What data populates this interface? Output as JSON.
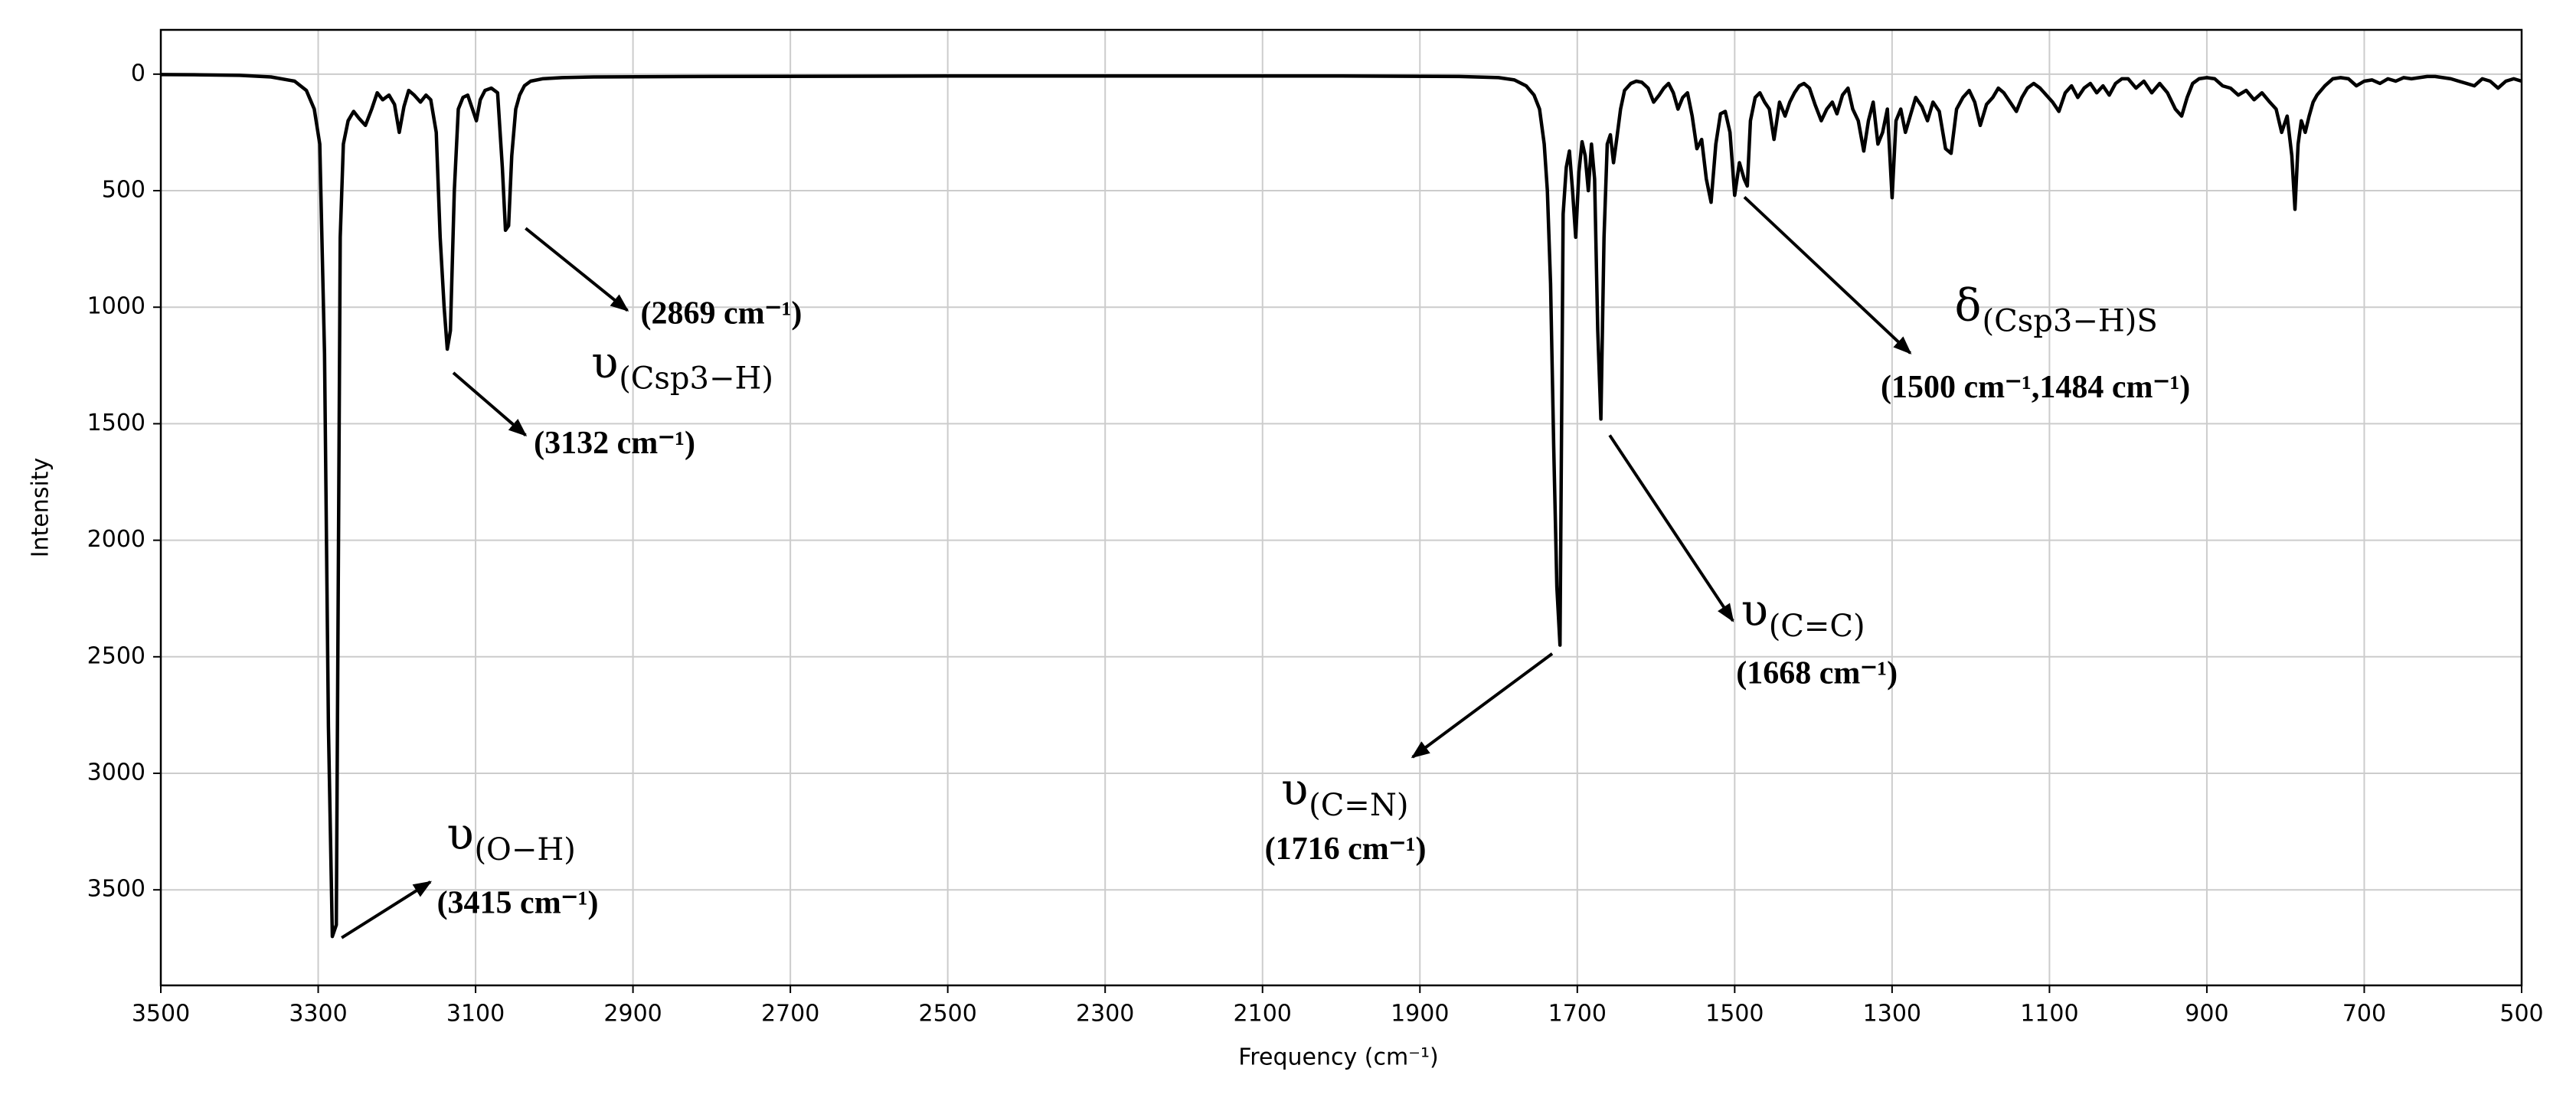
{
  "chart_data": {
    "type": "line",
    "xlabel": "Frequency (cm⁻¹)",
    "ylabel": "Intensity",
    "xlim": [
      3500,
      500
    ],
    "xticks": [
      3500,
      3300,
      3100,
      2900,
      2700,
      2500,
      2300,
      2100,
      1900,
      1700,
      1500,
      1300,
      1100,
      900,
      700,
      500
    ],
    "ylim": [
      -190,
      3910
    ],
    "y_inverted": true,
    "yticks": [
      0,
      500,
      1000,
      1500,
      2000,
      2500,
      3000,
      3500
    ],
    "grid": true,
    "color": "#000000",
    "x": [
      3500,
      3450,
      3400,
      3360,
      3330,
      3315,
      3305,
      3298,
      3292,
      3287,
      3282,
      3277,
      3272,
      3268,
      3262,
      3255,
      3248,
      3240,
      3232,
      3225,
      3218,
      3210,
      3203,
      3197,
      3191,
      3185,
      3178,
      3170,
      3163,
      3157,
      3150,
      3145,
      3140,
      3136,
      3132,
      3127,
      3122,
      3116,
      3110,
      3104,
      3099,
      3094,
      3088,
      3080,
      3072,
      3066,
      3062,
      3058,
      3054,
      3049,
      3044,
      3038,
      3030,
      3015,
      2990,
      2950,
      2800,
      2500,
      2200,
      2000,
      1850,
      1800,
      1780,
      1765,
      1755,
      1748,
      1742,
      1738,
      1734,
      1730,
      1726,
      1722,
      1718,
      1714,
      1710,
      1706,
      1702,
      1698,
      1694,
      1690,
      1686,
      1682,
      1678,
      1674,
      1670,
      1666,
      1662,
      1658,
      1654,
      1650,
      1645,
      1640,
      1632,
      1625,
      1618,
      1610,
      1603,
      1596,
      1590,
      1584,
      1578,
      1572,
      1566,
      1560,
      1554,
      1548,
      1542,
      1536,
      1530,
      1524,
      1518,
      1512,
      1506,
      1500,
      1494,
      1488,
      1484,
      1480,
      1474,
      1468,
      1462,
      1456,
      1450,
      1443,
      1436,
      1430,
      1424,
      1418,
      1412,
      1405,
      1398,
      1390,
      1383,
      1376,
      1370,
      1363,
      1356,
      1350,
      1343,
      1336,
      1330,
      1324,
      1318,
      1312,
      1306,
      1300,
      1295,
      1289,
      1283,
      1277,
      1270,
      1262,
      1255,
      1248,
      1240,
      1232,
      1225,
      1218,
      1210,
      1202,
      1195,
      1188,
      1180,
      1172,
      1165,
      1158,
      1150,
      1142,
      1135,
      1128,
      1120,
      1112,
      1104,
      1096,
      1088,
      1080,
      1072,
      1064,
      1056,
      1048,
      1040,
      1032,
      1024,
      1016,
      1008,
      1000,
      990,
      980,
      970,
      960,
      950,
      940,
      932,
      925,
      918,
      910,
      900,
      890,
      880,
      870,
      860,
      850,
      840,
      830,
      820,
      812,
      805,
      798,
      792,
      788,
      784,
      780,
      775,
      770,
      765,
      760,
      750,
      740,
      730,
      720,
      710,
      700,
      690,
      680,
      670,
      660,
      650,
      640,
      630,
      620,
      610,
      600,
      590,
      580,
      570,
      560,
      550,
      540,
      530,
      520,
      510,
      500
    ],
    "values": [
      2,
      3,
      5,
      12,
      30,
      70,
      150,
      300,
      1200,
      2800,
      3700,
      3650,
      700,
      300,
      200,
      160,
      190,
      220,
      150,
      80,
      110,
      90,
      130,
      250,
      140,
      70,
      90,
      120,
      90,
      110,
      250,
      700,
      1000,
      1180,
      1100,
      500,
      150,
      100,
      90,
      150,
      200,
      110,
      70,
      60,
      80,
      400,
      670,
      650,
      350,
      150,
      90,
      50,
      30,
      20,
      15,
      12,
      10,
      8,
      8,
      8,
      10,
      15,
      25,
      50,
      90,
      150,
      300,
      500,
      900,
      1600,
      2200,
      2450,
      600,
      400,
      330,
      500,
      700,
      420,
      290,
      350,
      500,
      300,
      450,
      1100,
      1480,
      700,
      300,
      260,
      380,
      280,
      150,
      70,
      40,
      30,
      35,
      60,
      120,
      90,
      60,
      40,
      80,
      150,
      100,
      80,
      180,
      320,
      280,
      450,
      550,
      300,
      170,
      160,
      250,
      520,
      380,
      450,
      480,
      200,
      100,
      80,
      120,
      150,
      280,
      120,
      180,
      120,
      80,
      50,
      40,
      60,
      130,
      200,
      150,
      120,
      170,
      90,
      60,
      150,
      200,
      330,
      200,
      120,
      300,
      250,
      150,
      530,
      200,
      150,
      250,
      180,
      100,
      140,
      200,
      120,
      160,
      320,
      340,
      150,
      100,
      70,
      120,
      220,
      130,
      100,
      60,
      80,
      120,
      160,
      100,
      60,
      40,
      60,
      90,
      120,
      160,
      80,
      50,
      100,
      60,
      40,
      80,
      50,
      90,
      40,
      20,
      20,
      60,
      30,
      80,
      40,
      80,
      150,
      180,
      100,
      40,
      20,
      15,
      20,
      50,
      60,
      90,
      70,
      110,
      80,
      120,
      150,
      250,
      180,
      350,
      580,
      300,
      200,
      250,
      180,
      120,
      90,
      50,
      20,
      15,
      20,
      50,
      30,
      25,
      40,
      20,
      30,
      15,
      20,
      15,
      10,
      10,
      15,
      20,
      30,
      40,
      50,
      20,
      30,
      60,
      30,
      20,
      30
    ],
    "annotations": [
      {
        "symbol": "υ",
        "subscript": "(O−H)",
        "label": "(3415 cm⁻¹)"
      },
      {
        "label": "(3132 cm⁻¹)"
      },
      {
        "symbol": "υ",
        "subscript": "(Csp3−H)",
        "label": "(2869 cm⁻¹)"
      },
      {
        "symbol": "υ",
        "subscript": "(C=N)",
        "label": "(1716 cm⁻¹)"
      },
      {
        "symbol": "υ",
        "subscript": "(C=C)",
        "label": "(1668 cm⁻¹)"
      },
      {
        "symbol": "δ",
        "subscript": "(Csp3−H)S",
        "label": "(1500 cm⁻¹,1484 cm⁻¹)"
      }
    ]
  }
}
